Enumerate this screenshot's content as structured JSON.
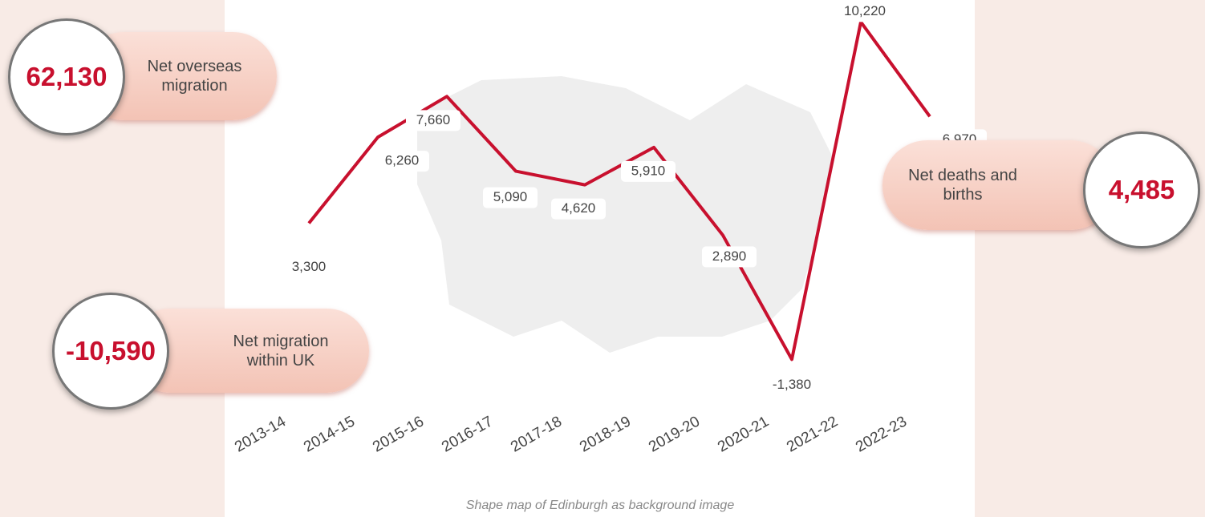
{
  "chart_data": {
    "type": "line",
    "categories": [
      "2013-14",
      "2014-15",
      "2015-16",
      "2016-17",
      "2017-18",
      "2018-19",
      "2019-20",
      "2020-21",
      "2021-22",
      "2022-23"
    ],
    "values": [
      3300,
      6260,
      7660,
      5090,
      4620,
      5910,
      2890,
      -1380,
      10220,
      6970
    ],
    "value_labels": [
      "3,300",
      "6,260",
      "7,660",
      "5,090",
      "4,620",
      "5,910",
      "2,890",
      "-1,380",
      "10,220",
      "6,970"
    ],
    "color": "#c8102e",
    "ylim": [
      -1700,
      10700
    ],
    "caption": "Shape map of Edinburgh as background image"
  },
  "callouts": [
    {
      "value": "62,130",
      "label": "Net overseas migration"
    },
    {
      "value": "-10,590",
      "label": "Net migration within UK"
    },
    {
      "value": "4,485",
      "label": "Net deaths and births"
    }
  ]
}
